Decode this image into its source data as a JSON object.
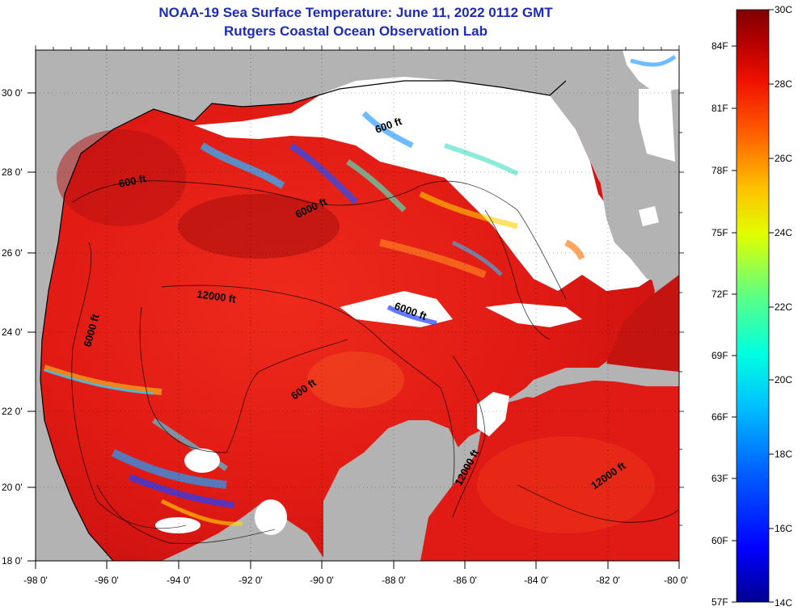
{
  "header": {
    "title": "NOAA-19 Sea Surface Temperature:  June 11, 2022 0112 GMT",
    "subtitle": "Rutgers Coastal Ocean Observation Lab"
  },
  "map": {
    "lon_range": [
      -98,
      -80
    ],
    "lat_range": [
      18,
      31
    ],
    "lon_ticks": [
      "-98 0'",
      "-96 0'",
      "-94 0'",
      "-92 0'",
      "-90 0'",
      "-88 0'",
      "-86 0'",
      "-84 0'",
      "-82 0'",
      "-80 0'"
    ],
    "lat_ticks": [
      "18 0'",
      "20 0'",
      "22 0'",
      "24 0'",
      "26 0'",
      "28 0'",
      "30 0'"
    ],
    "contour_labels": [
      "600 ft",
      "6000 ft",
      "12000 ft",
      "6000 ft",
      "6000 ft",
      "600 ft",
      "600 ft",
      "12000 ft",
      "12000 ft"
    ],
    "colors": {
      "land": "#b3b3b3",
      "cloud": "#ffffff",
      "water": "#e0201a"
    }
  },
  "colorbar": {
    "celsius_labels": [
      "30C",
      "28C",
      "26C",
      "24C",
      "22C",
      "20C",
      "18C",
      "16C",
      "14C"
    ],
    "fahrenheit_labels": [
      "84F",
      "81F",
      "78F",
      "75F",
      "72F",
      "69F",
      "66F",
      "63F",
      "60F",
      "57F"
    ],
    "colors": [
      "#000090",
      "#0000ff",
      "#0060ff",
      "#00c0ff",
      "#00ffe0",
      "#60ff80",
      "#e0ff00",
      "#ffc000",
      "#ff6000",
      "#f01000",
      "#b00000",
      "#800000"
    ]
  }
}
